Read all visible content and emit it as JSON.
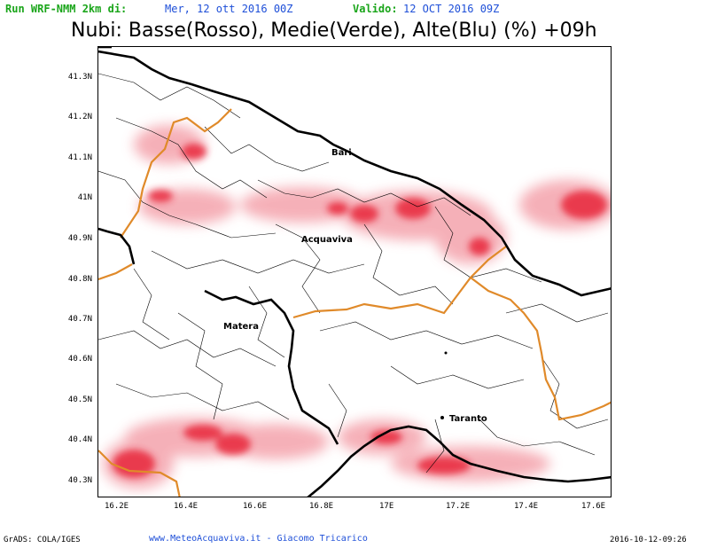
{
  "header": {
    "run_label": "Run WRF-NMM 2km di:",
    "run_value": "Mer, 12 ott 2016 00Z",
    "valid_label": "Valido:",
    "valid_value": "12 OCT 2016 09Z",
    "title": "Nubi: Basse(Rosso), Medie(Verde), Alte(Blu) (%) +09h"
  },
  "axes": {
    "y_labels": [
      "41.3N",
      "41.2N",
      "41.1N",
      "41N",
      "40.9N",
      "40.8N",
      "40.7N",
      "40.6N",
      "40.5N",
      "40.4N",
      "40.3N"
    ],
    "x_labels": [
      "16.2E",
      "16.4E",
      "16.6E",
      "16.8E",
      "17E",
      "17.2E",
      "17.4E",
      "17.6E"
    ]
  },
  "cities": {
    "bari": "Bari",
    "acquaviva": "Acquaviva",
    "matera": "Matera",
    "taranto": "Taranto"
  },
  "footer": {
    "grads": "GrADS: COLA/IGES",
    "credit": "www.MeteoAcquaviva.it - Giacomo Tricarico",
    "timestamp": "2016-10-12-09:26"
  },
  "colors": {
    "run_label": "#1aa51a",
    "run_value": "#1e4fd8",
    "low_clouds": "#e8283a",
    "region_border": "#e08a2a",
    "coast": "#000000"
  }
}
